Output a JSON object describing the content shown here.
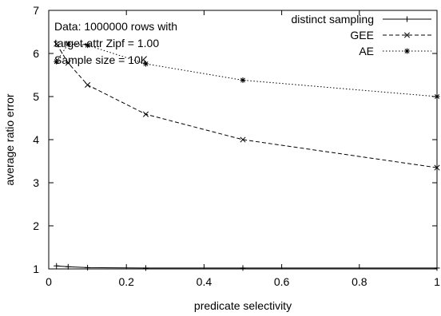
{
  "chart_data": {
    "type": "line",
    "xlabel": "predicate selectivity",
    "ylabel": "average ratio error",
    "xlim": [
      0,
      1
    ],
    "ylim": [
      1,
      7
    ],
    "xticks": [
      0,
      0.2,
      0.4,
      0.6,
      0.8,
      1
    ],
    "yticks": [
      1,
      2,
      3,
      4,
      5,
      6,
      7
    ],
    "xtick_labels": [
      "0",
      "0.2",
      "0.4",
      "0.6",
      "0.8",
      "1"
    ],
    "ytick_labels": [
      "1",
      "2",
      "3",
      "4",
      "5",
      "6",
      "7"
    ],
    "grid": false,
    "legend_position": "top-right",
    "annotation": [
      "Data: 1000000 rows with",
      "target-attr Zipf = 1.00",
      "Sample size = 10K"
    ],
    "series": [
      {
        "name": "distinct sampling",
        "line_style": "solid",
        "marker": "+",
        "x": [
          0.02,
          0.05,
          0.1,
          0.25,
          0.5,
          1
        ],
        "y": [
          1.07,
          1.05,
          1.03,
          1.02,
          1.02,
          1.02
        ]
      },
      {
        "name": "GEE",
        "line_style": "dashed",
        "marker": "x",
        "x": [
          0.02,
          0.05,
          0.1,
          0.25,
          0.5,
          1
        ],
        "y": [
          6.22,
          5.78,
          5.27,
          4.59,
          4.0,
          3.35
        ]
      },
      {
        "name": "AE",
        "line_style": "dotted",
        "marker": "*",
        "x": [
          0.02,
          0.05,
          0.1,
          0.25,
          0.5,
          1
        ],
        "y": [
          5.81,
          6.22,
          6.19,
          5.76,
          5.38,
          5.0
        ]
      }
    ]
  }
}
